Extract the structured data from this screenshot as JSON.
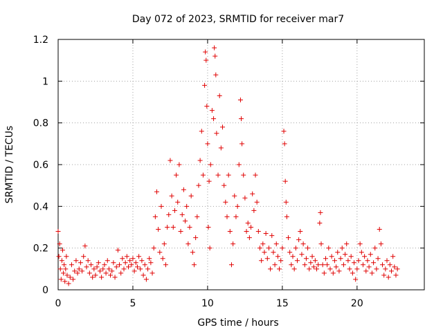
{
  "chart_data": {
    "type": "scatter",
    "title": "Day 072 of 2023, SRMTID for receiver mar7",
    "xlabel": "GPS time / hours",
    "ylabel": "SRMTID / TECUs",
    "xlim": [
      0,
      24.5
    ],
    "ylim": [
      0,
      1.2
    ],
    "x_ticks": [
      0,
      5,
      10,
      15,
      20
    ],
    "x_tick_labels": [
      "0",
      "5",
      "10",
      "15",
      "20"
    ],
    "y_ticks": [
      0,
      0.2,
      0.4,
      0.6,
      0.8,
      1.0,
      1.2
    ],
    "y_tick_labels": [
      "0",
      "0.2",
      "0.4",
      "0.6",
      "0.8",
      "1",
      "1.2"
    ],
    "grid": true,
    "marker": "plus",
    "series": [
      {
        "name": "SRMTID",
        "color": "#e00000",
        "points": [
          [
            0.0,
            0.28
          ],
          [
            0.05,
            0.16
          ],
          [
            0.1,
            0.22
          ],
          [
            0.15,
            0.1
          ],
          [
            0.2,
            0.05
          ],
          [
            0.25,
            0.14
          ],
          [
            0.3,
            0.19
          ],
          [
            0.35,
            0.08
          ],
          [
            0.4,
            0.12
          ],
          [
            0.45,
            0.04
          ],
          [
            0.5,
            0.1
          ],
          [
            0.55,
            0.16
          ],
          [
            0.6,
            0.07
          ],
          [
            0.7,
            0.03
          ],
          [
            0.8,
            0.06
          ],
          [
            0.9,
            0.12
          ],
          [
            1.0,
            0.05
          ],
          [
            1.1,
            0.09
          ],
          [
            1.2,
            0.14
          ],
          [
            1.3,
            0.08
          ],
          [
            1.4,
            0.1
          ],
          [
            1.5,
            0.13
          ],
          [
            1.6,
            0.09
          ],
          [
            1.7,
            0.16
          ],
          [
            1.8,
            0.21
          ],
          [
            1.9,
            0.11
          ],
          [
            2.0,
            0.14
          ],
          [
            2.1,
            0.08
          ],
          [
            2.2,
            0.12
          ],
          [
            2.3,
            0.06
          ],
          [
            2.4,
            0.1
          ],
          [
            2.5,
            0.07
          ],
          [
            2.6,
            0.11
          ],
          [
            2.7,
            0.13
          ],
          [
            2.8,
            0.09
          ],
          [
            2.9,
            0.06
          ],
          [
            3.0,
            0.1
          ],
          [
            3.1,
            0.12
          ],
          [
            3.2,
            0.08
          ],
          [
            3.3,
            0.14
          ],
          [
            3.4,
            0.1
          ],
          [
            3.5,
            0.07
          ],
          [
            3.6,
            0.09
          ],
          [
            3.7,
            0.13
          ],
          [
            3.8,
            0.06
          ],
          [
            3.9,
            0.11
          ],
          [
            4.0,
            0.19
          ],
          [
            4.1,
            0.12
          ],
          [
            4.2,
            0.08
          ],
          [
            4.3,
            0.15
          ],
          [
            4.4,
            0.1
          ],
          [
            4.5,
            0.13
          ],
          [
            4.6,
            0.16
          ],
          [
            4.7,
            0.11
          ],
          [
            4.8,
            0.14
          ],
          [
            4.9,
            0.12
          ],
          [
            5.0,
            0.15
          ],
          [
            5.1,
            0.09
          ],
          [
            5.2,
            0.13
          ],
          [
            5.3,
            0.11
          ],
          [
            5.4,
            0.16
          ],
          [
            5.5,
            0.1
          ],
          [
            5.6,
            0.14
          ],
          [
            5.7,
            0.07
          ],
          [
            5.8,
            0.12
          ],
          [
            5.9,
            0.05
          ],
          [
            6.0,
            0.1
          ],
          [
            6.1,
            0.15
          ],
          [
            6.2,
            0.13
          ],
          [
            6.3,
            0.08
          ],
          [
            6.4,
            0.2
          ],
          [
            6.5,
            0.35
          ],
          [
            6.6,
            0.47
          ],
          [
            6.7,
            0.29
          ],
          [
            6.8,
            0.18
          ],
          [
            6.9,
            0.4
          ],
          [
            7.0,
            0.15
          ],
          [
            7.1,
            0.22
          ],
          [
            7.2,
            0.12
          ],
          [
            7.3,
            0.3
          ],
          [
            7.4,
            0.36
          ],
          [
            7.5,
            0.62
          ],
          [
            7.6,
            0.45
          ],
          [
            7.7,
            0.3
          ],
          [
            7.8,
            0.38
          ],
          [
            7.9,
            0.55
          ],
          [
            8.0,
            0.42
          ],
          [
            8.1,
            0.6
          ],
          [
            8.2,
            0.28
          ],
          [
            8.3,
            0.36
          ],
          [
            8.4,
            0.48
          ],
          [
            8.5,
            0.33
          ],
          [
            8.6,
            0.4
          ],
          [
            8.7,
            0.22
          ],
          [
            8.8,
            0.3
          ],
          [
            8.9,
            0.45
          ],
          [
            9.0,
            0.18
          ],
          [
            9.1,
            0.12
          ],
          [
            9.2,
            0.25
          ],
          [
            9.3,
            0.35
          ],
          [
            9.4,
            0.5
          ],
          [
            9.5,
            0.62
          ],
          [
            9.6,
            0.76
          ],
          [
            9.7,
            0.55
          ],
          [
            9.8,
            0.98
          ],
          [
            9.85,
            1.14
          ],
          [
            9.9,
            1.1
          ],
          [
            9.95,
            0.88
          ],
          [
            10.0,
            0.7
          ],
          [
            10.05,
            0.3
          ],
          [
            10.1,
            0.52
          ],
          [
            10.15,
            0.2
          ],
          [
            10.2,
            0.6
          ],
          [
            10.3,
            0.86
          ],
          [
            10.4,
            0.82
          ],
          [
            10.45,
            1.16
          ],
          [
            10.5,
            1.12
          ],
          [
            10.55,
            1.03
          ],
          [
            10.6,
            0.75
          ],
          [
            10.7,
            0.55
          ],
          [
            10.8,
            0.93
          ],
          [
            10.9,
            0.68
          ],
          [
            11.0,
            0.78
          ],
          [
            11.1,
            0.5
          ],
          [
            11.2,
            0.42
          ],
          [
            11.3,
            0.35
          ],
          [
            11.4,
            0.55
          ],
          [
            11.5,
            0.28
          ],
          [
            11.6,
            0.12
          ],
          [
            11.7,
            0.22
          ],
          [
            11.8,
            0.45
          ],
          [
            11.9,
            0.35
          ],
          [
            12.0,
            0.4
          ],
          [
            12.1,
            0.6
          ],
          [
            12.2,
            0.91
          ],
          [
            12.25,
            0.82
          ],
          [
            12.3,
            0.7
          ],
          [
            12.4,
            0.55
          ],
          [
            12.5,
            0.44
          ],
          [
            12.6,
            0.28
          ],
          [
            12.7,
            0.32
          ],
          [
            12.8,
            0.25
          ],
          [
            12.9,
            0.3
          ],
          [
            13.0,
            0.46
          ],
          [
            13.1,
            0.38
          ],
          [
            13.2,
            0.55
          ],
          [
            13.3,
            0.42
          ],
          [
            13.4,
            0.28
          ],
          [
            13.5,
            0.2
          ],
          [
            13.6,
            0.14
          ],
          [
            13.7,
            0.22
          ],
          [
            13.8,
            0.18
          ],
          [
            13.9,
            0.27
          ],
          [
            14.0,
            0.15
          ],
          [
            14.1,
            0.2
          ],
          [
            14.2,
            0.1
          ],
          [
            14.3,
            0.26
          ],
          [
            14.4,
            0.18
          ],
          [
            14.5,
            0.12
          ],
          [
            14.6,
            0.22
          ],
          [
            14.7,
            0.16
          ],
          [
            14.8,
            0.1
          ],
          [
            14.9,
            0.14
          ],
          [
            15.0,
            0.2
          ],
          [
            15.1,
            0.76
          ],
          [
            15.15,
            0.7
          ],
          [
            15.2,
            0.52
          ],
          [
            15.25,
            0.42
          ],
          [
            15.3,
            0.35
          ],
          [
            15.4,
            0.25
          ],
          [
            15.5,
            0.18
          ],
          [
            15.6,
            0.12
          ],
          [
            15.7,
            0.16
          ],
          [
            15.8,
            0.1
          ],
          [
            15.9,
            0.2
          ],
          [
            16.0,
            0.14
          ],
          [
            16.1,
            0.24
          ],
          [
            16.2,
            0.28
          ],
          [
            16.3,
            0.17
          ],
          [
            16.4,
            0.22
          ],
          [
            16.5,
            0.12
          ],
          [
            16.6,
            0.15
          ],
          [
            16.7,
            0.2
          ],
          [
            16.8,
            0.1
          ],
          [
            16.9,
            0.13
          ],
          [
            17.0,
            0.16
          ],
          [
            17.1,
            0.11
          ],
          [
            17.2,
            0.14
          ],
          [
            17.3,
            0.1
          ],
          [
            17.4,
            0.12
          ],
          [
            17.5,
            0.32
          ],
          [
            17.55,
            0.37
          ],
          [
            17.6,
            0.22
          ],
          [
            17.7,
            0.12
          ],
          [
            17.8,
            0.08
          ],
          [
            17.9,
            0.15
          ],
          [
            18.0,
            0.12
          ],
          [
            18.1,
            0.2
          ],
          [
            18.2,
            0.1
          ],
          [
            18.3,
            0.16
          ],
          [
            18.4,
            0.08
          ],
          [
            18.5,
            0.14
          ],
          [
            18.6,
            0.11
          ],
          [
            18.7,
            0.18
          ],
          [
            18.8,
            0.09
          ],
          [
            18.9,
            0.15
          ],
          [
            19.0,
            0.2
          ],
          [
            19.1,
            0.12
          ],
          [
            19.2,
            0.17
          ],
          [
            19.3,
            0.22
          ],
          [
            19.4,
            0.14
          ],
          [
            19.5,
            0.1
          ],
          [
            19.6,
            0.16
          ],
          [
            19.7,
            0.08
          ],
          [
            19.8,
            0.13
          ],
          [
            19.9,
            0.05
          ],
          [
            20.0,
            0.1
          ],
          [
            20.1,
            0.14
          ],
          [
            20.2,
            0.22
          ],
          [
            20.3,
            0.18
          ],
          [
            20.4,
            0.12
          ],
          [
            20.5,
            0.16
          ],
          [
            20.6,
            0.09
          ],
          [
            20.7,
            0.14
          ],
          [
            20.8,
            0.11
          ],
          [
            20.9,
            0.17
          ],
          [
            21.0,
            0.08
          ],
          [
            21.1,
            0.13
          ],
          [
            21.2,
            0.2
          ],
          [
            21.3,
            0.1
          ],
          [
            21.4,
            0.15
          ],
          [
            21.5,
            0.29
          ],
          [
            21.6,
            0.22
          ],
          [
            21.7,
            0.12
          ],
          [
            21.8,
            0.07
          ],
          [
            21.9,
            0.1
          ],
          [
            22.0,
            0.14
          ],
          [
            22.1,
            0.06
          ],
          [
            22.2,
            0.12
          ],
          [
            22.3,
            0.09
          ],
          [
            22.4,
            0.16
          ],
          [
            22.5,
            0.11
          ],
          [
            22.6,
            0.07
          ],
          [
            22.7,
            0.1
          ]
        ]
      }
    ]
  }
}
